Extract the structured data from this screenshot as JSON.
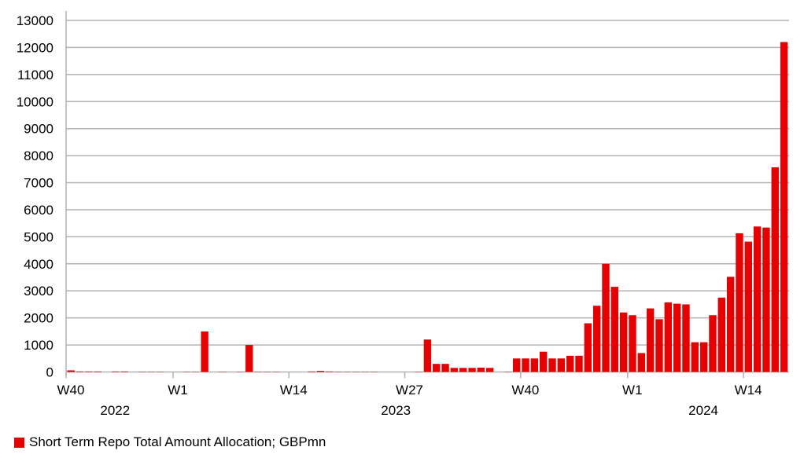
{
  "chart_data": {
    "type": "bar",
    "title": "",
    "xlabel": "",
    "ylabel": "",
    "ylim": [
      0,
      13000
    ],
    "yticks": [
      0,
      1000,
      2000,
      3000,
      4000,
      5000,
      6000,
      7000,
      8000,
      9000,
      10000,
      11000,
      12000,
      13000
    ],
    "grid": true,
    "x_ticks": [
      {
        "label": "W40",
        "index": 0
      },
      {
        "label": "W1",
        "index": 12
      },
      {
        "label": "W14",
        "index": 25
      },
      {
        "label": "W27",
        "index": 38
      },
      {
        "label": "W40",
        "index": 51
      },
      {
        "label": "W1",
        "index": 63
      },
      {
        "label": "W14",
        "index": 76
      }
    ],
    "year_labels": [
      {
        "label": "2022",
        "index": 5.5
      },
      {
        "label": "2023",
        "index": 37
      },
      {
        "label": "2024",
        "index": 71.5
      }
    ],
    "legend_position": "bottom-left",
    "series": [
      {
        "name": "Short Term Repo Total Amount Allocation; GBPmn",
        "color": "#e60000",
        "values": [
          60,
          20,
          20,
          20,
          0,
          20,
          20,
          0,
          10,
          10,
          10,
          0,
          0,
          10,
          10,
          1500,
          0,
          10,
          0,
          10,
          1000,
          10,
          10,
          10,
          0,
          0,
          0,
          20,
          40,
          20,
          10,
          10,
          10,
          10,
          10,
          0,
          0,
          0,
          0,
          10,
          1200,
          300,
          300,
          150,
          150,
          150,
          160,
          150,
          0,
          10,
          500,
          500,
          500,
          750,
          500,
          500,
          600,
          600,
          1800,
          2450,
          4000,
          3150,
          2200,
          2100,
          700,
          2350,
          1950,
          2575,
          2525,
          2500,
          1100,
          1100,
          2100,
          2750,
          3520,
          5130,
          4820,
          5380,
          5340,
          7570,
          12200
        ]
      }
    ]
  }
}
